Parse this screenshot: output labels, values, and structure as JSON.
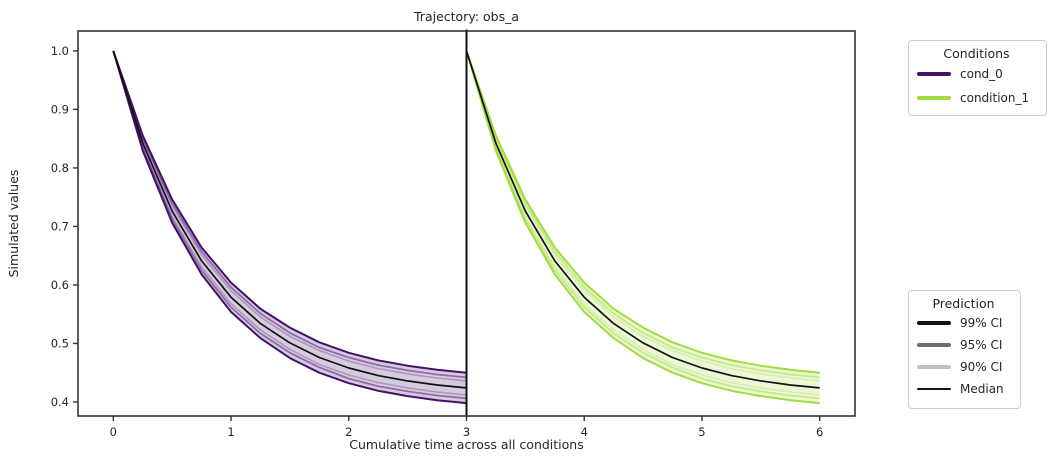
{
  "figure": {
    "title": "Trajectory: obs_a",
    "xlabel": "Cumulative time across all conditions",
    "ylabel": "Simulated values"
  },
  "legends": {
    "conditions": {
      "title": "Conditions",
      "items": [
        {
          "label": "cond_0",
          "color": "#45106b",
          "thickness": 4.5
        },
        {
          "label": "condition_1",
          "color": "#a2dc3e",
          "thickness": 4.5
        }
      ]
    },
    "prediction": {
      "title": "Prediction",
      "items": [
        {
          "label": "99% CI",
          "color": "#111111",
          "thickness": 4.5
        },
        {
          "label": "95% CI",
          "color": "#6f6f6f",
          "thickness": 4.5
        },
        {
          "label": "90% CI",
          "color": "#c2c2c2",
          "thickness": 4.5
        },
        {
          "label": "Median",
          "color": "#111111",
          "thickness": 1.5
        }
      ]
    }
  },
  "chart_data": {
    "type": "line",
    "title": "Trajectory: obs_a",
    "xlabel": "Cumulative time across all conditions",
    "ylabel": "Simulated values",
    "xlim": [
      -0.3,
      6.3
    ],
    "ylim": [
      0.376,
      1.034
    ],
    "xticks": [
      0,
      1,
      2,
      3,
      4,
      5,
      6
    ],
    "yticks": [
      0.4,
      0.5,
      0.6,
      0.7,
      0.8,
      0.9,
      1.0
    ],
    "grid": false,
    "condition_separator_x": 3,
    "separator_color": "#111111",
    "median_color": "#111111",
    "spine_color": "#333333",
    "text_color": "#262626",
    "series": [
      {
        "name": "cond_0",
        "color": "#45106b",
        "t": [
          0,
          0.25,
          0.5,
          0.75,
          1.0,
          1.25,
          1.5,
          1.75,
          2.0,
          2.25,
          2.5,
          2.75,
          3.0
        ],
        "median": [
          1.0,
          0.842,
          0.726,
          0.641,
          0.579,
          0.534,
          0.501,
          0.476,
          0.458,
          0.445,
          0.436,
          0.429,
          0.424
        ],
        "ci99_lo": [
          1.0,
          0.829,
          0.706,
          0.618,
          0.554,
          0.509,
          0.475,
          0.45,
          0.432,
          0.419,
          0.41,
          0.403,
          0.398
        ],
        "ci99_hi": [
          1.0,
          0.855,
          0.746,
          0.664,
          0.604,
          0.559,
          0.527,
          0.502,
          0.484,
          0.471,
          0.462,
          0.455,
          0.45
        ],
        "ci95_lo": [
          1.0,
          0.833,
          0.712,
          0.625,
          0.562,
          0.517,
          0.484,
          0.459,
          0.44,
          0.427,
          0.418,
          0.411,
          0.406
        ],
        "ci95_hi": [
          1.0,
          0.851,
          0.74,
          0.657,
          0.596,
          0.551,
          0.518,
          0.493,
          0.476,
          0.463,
          0.454,
          0.447,
          0.442
        ],
        "ci90_lo": [
          1.0,
          0.836,
          0.717,
          0.631,
          0.568,
          0.523,
          0.49,
          0.464,
          0.446,
          0.433,
          0.424,
          0.417,
          0.412
        ],
        "ci90_hi": [
          1.0,
          0.848,
          0.735,
          0.651,
          0.59,
          0.545,
          0.512,
          0.488,
          0.47,
          0.457,
          0.448,
          0.441,
          0.436
        ]
      },
      {
        "name": "condition_1",
        "color": "#a2dc3e",
        "t": [
          3.0,
          3.25,
          3.5,
          3.75,
          4.0,
          4.25,
          4.5,
          4.75,
          5.0,
          5.25,
          5.5,
          5.75,
          6.0
        ],
        "median": [
          1.0,
          0.842,
          0.726,
          0.641,
          0.579,
          0.534,
          0.501,
          0.476,
          0.458,
          0.445,
          0.436,
          0.429,
          0.424
        ],
        "ci99_lo": [
          1.0,
          0.829,
          0.706,
          0.618,
          0.554,
          0.509,
          0.475,
          0.45,
          0.432,
          0.419,
          0.41,
          0.403,
          0.398
        ],
        "ci99_hi": [
          1.0,
          0.855,
          0.746,
          0.664,
          0.604,
          0.559,
          0.527,
          0.502,
          0.484,
          0.471,
          0.462,
          0.455,
          0.45
        ],
        "ci95_lo": [
          1.0,
          0.833,
          0.712,
          0.625,
          0.562,
          0.517,
          0.484,
          0.459,
          0.44,
          0.427,
          0.418,
          0.411,
          0.406
        ],
        "ci95_hi": [
          1.0,
          0.851,
          0.74,
          0.657,
          0.596,
          0.551,
          0.518,
          0.493,
          0.476,
          0.463,
          0.454,
          0.447,
          0.442
        ],
        "ci90_lo": [
          1.0,
          0.836,
          0.717,
          0.631,
          0.568,
          0.523,
          0.49,
          0.464,
          0.446,
          0.433,
          0.424,
          0.417,
          0.412
        ],
        "ci90_hi": [
          1.0,
          0.848,
          0.735,
          0.651,
          0.59,
          0.545,
          0.512,
          0.488,
          0.47,
          0.457,
          0.448,
          0.441,
          0.436
        ]
      }
    ]
  }
}
